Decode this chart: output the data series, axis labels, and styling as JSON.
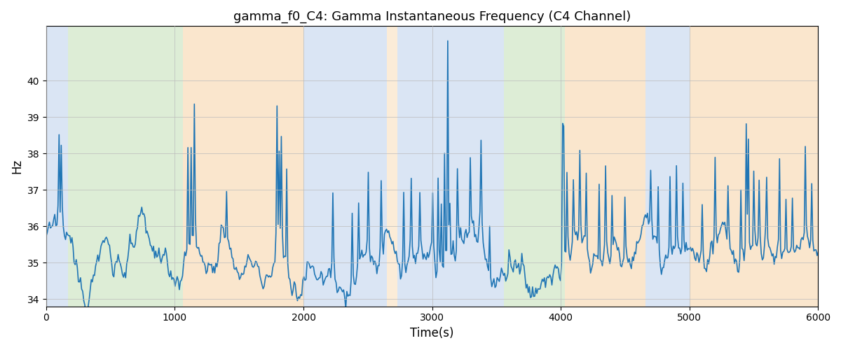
{
  "title": "gamma_f0_C4: Gamma Instantaneous Frequency (C4 Channel)",
  "xlabel": "Time(s)",
  "ylabel": "Hz",
  "xlim": [
    0,
    6000
  ],
  "ylim": [
    33.8,
    41.5
  ],
  "yticks": [
    34,
    35,
    36,
    37,
    38,
    39,
    40
  ],
  "xticks": [
    0,
    1000,
    2000,
    3000,
    4000,
    5000,
    6000
  ],
  "line_color": "#2176b5",
  "line_width": 1.2,
  "background_color": "#ffffff",
  "grid_color": "#bbbbbb",
  "regions": [
    {
      "start": 0,
      "end": 170,
      "color": "#aec6e8",
      "alpha": 0.45
    },
    {
      "start": 170,
      "end": 1060,
      "color": "#b5d9a5",
      "alpha": 0.45
    },
    {
      "start": 1060,
      "end": 2000,
      "color": "#f5c990",
      "alpha": 0.45
    },
    {
      "start": 2000,
      "end": 2650,
      "color": "#aec6e8",
      "alpha": 0.45
    },
    {
      "start": 2650,
      "end": 2730,
      "color": "#f5c990",
      "alpha": 0.35
    },
    {
      "start": 2730,
      "end": 3390,
      "color": "#aec6e8",
      "alpha": 0.45
    },
    {
      "start": 3390,
      "end": 3560,
      "color": "#aec6e8",
      "alpha": 0.45
    },
    {
      "start": 3560,
      "end": 4030,
      "color": "#b5d9a5",
      "alpha": 0.45
    },
    {
      "start": 4030,
      "end": 4660,
      "color": "#f5c990",
      "alpha": 0.45
    },
    {
      "start": 4660,
      "end": 5000,
      "color": "#aec6e8",
      "alpha": 0.45
    },
    {
      "start": 5000,
      "end": 6000,
      "color": "#f5c990",
      "alpha": 0.45
    }
  ],
  "n_points": 720,
  "seed": 12345
}
